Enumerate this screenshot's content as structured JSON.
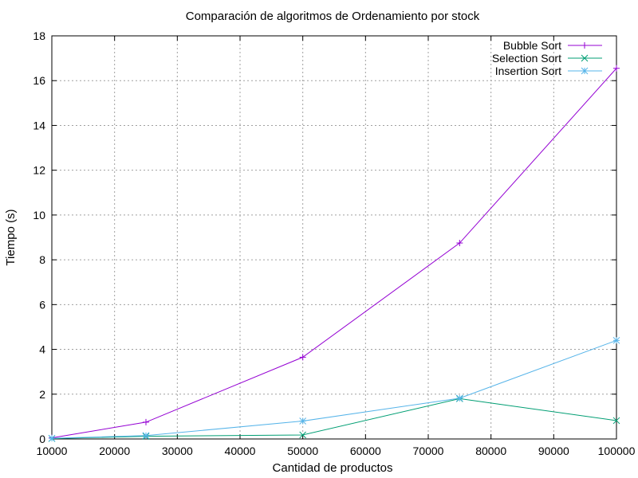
{
  "chart_data": {
    "type": "line",
    "title": "Comparación de algoritmos de Ordenamiento por stock",
    "xlabel": "Cantidad de productos",
    "ylabel": "Tiempo (s)",
    "xlim": [
      10000,
      100000
    ],
    "ylim": [
      0,
      18
    ],
    "xticks": [
      10000,
      20000,
      30000,
      40000,
      50000,
      60000,
      70000,
      80000,
      90000,
      100000
    ],
    "yticks": [
      0,
      2,
      4,
      6,
      8,
      10,
      12,
      14,
      16,
      18
    ],
    "grid": true,
    "legend_position": "top-right",
    "x": [
      10000,
      25000,
      50000,
      75000,
      100000
    ],
    "series": [
      {
        "name": "Bubble Sort",
        "color": "#9400d3",
        "marker": "plus",
        "values": [
          0.05,
          0.75,
          3.65,
          8.75,
          16.55
        ]
      },
      {
        "name": "Selection Sort",
        "color": "#009e73",
        "marker": "cross",
        "values": [
          0.02,
          0.12,
          0.18,
          1.8,
          0.82
        ]
      },
      {
        "name": "Insertion Sort",
        "color": "#56b4e9",
        "marker": "star",
        "values": [
          0.03,
          0.15,
          0.8,
          1.82,
          4.4
        ]
      }
    ]
  }
}
